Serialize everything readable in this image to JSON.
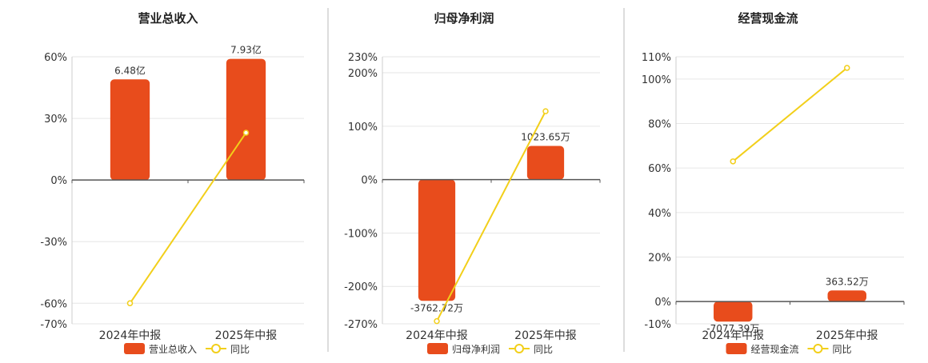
{
  "colors": {
    "bar": "#e84c1c",
    "line": "#f2cf1a",
    "grid": "#e6e6e6",
    "axis": "#555555",
    "divider": "#bbbbbb",
    "text": "#333333"
  },
  "legend_yoy": "同比",
  "chart_data": [
    {
      "type": "bar",
      "title": "营业总收入",
      "categories": [
        "2024年中报",
        "2025年中报"
      ],
      "bar_label": "营业总收入",
      "bar_values": [
        6.48,
        7.93
      ],
      "bar_value_labels": [
        "6.48亿",
        "7.93亿"
      ],
      "bar_scale_pct": [
        49,
        59
      ],
      "yoy_series": {
        "name": "同比",
        "values": [
          -60,
          23
        ]
      },
      "y_ticks": [
        60,
        30,
        0,
        -30,
        -60,
        -70
      ],
      "y_tick_labels": [
        "60%",
        "30%",
        "0%",
        "-30%",
        "-60%",
        "-70%"
      ],
      "ylim": [
        -70,
        60
      ]
    },
    {
      "type": "bar",
      "title": "归母净利润",
      "categories": [
        "2024年中报",
        "2025年中报"
      ],
      "bar_label": "归母净利润",
      "bar_values": [
        -3762.72,
        1023.65
      ],
      "bar_value_labels": [
        "-3762.72万",
        "1023.65万"
      ],
      "bar_scale_pct": [
        -227,
        63
      ],
      "yoy_series": {
        "name": "同比",
        "values": [
          -265,
          128
        ]
      },
      "y_ticks": [
        230,
        200,
        100,
        0,
        -100,
        -200,
        -270
      ],
      "y_tick_labels": [
        "230%",
        "200%",
        "100%",
        "0%",
        "-100%",
        "-200%",
        "-270%"
      ],
      "ylim": [
        -270,
        230
      ]
    },
    {
      "type": "bar",
      "title": "经营现金流",
      "categories": [
        "2024年中报",
        "2025年中报"
      ],
      "bar_label": "经营现金流",
      "bar_values": [
        -7077.39,
        363.52
      ],
      "bar_value_labels": [
        "-7077.39万",
        "363.52万"
      ],
      "bar_scale_pct": [
        -9,
        5
      ],
      "yoy_series": {
        "name": "同比",
        "values": [
          63,
          105
        ]
      },
      "y_ticks": [
        110,
        100,
        80,
        60,
        40,
        20,
        0,
        -10
      ],
      "y_tick_labels": [
        "110%",
        "100%",
        "80%",
        "60%",
        "40%",
        "20%",
        "0%",
        "-10%"
      ],
      "ylim": [
        -10,
        110
      ]
    }
  ]
}
